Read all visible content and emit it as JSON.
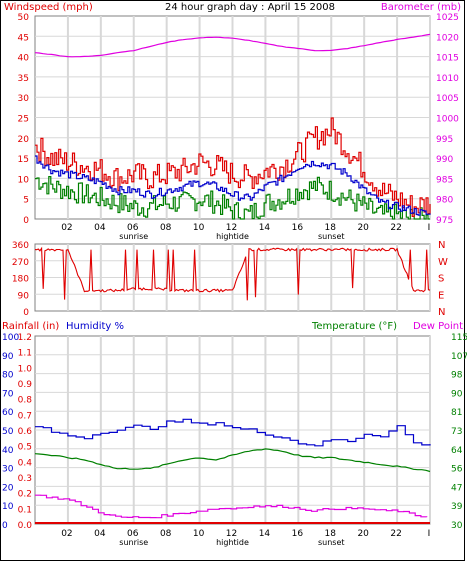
{
  "title": "24 hour graph day : April 15 2008",
  "colors": {
    "red": "#e00000",
    "blue": "#0000cc",
    "green": "#008000",
    "magenta": "#e000e0",
    "grid": "#d8d8d8",
    "axis": "#808080"
  },
  "x_ticks": [
    "02",
    "04",
    "06",
    "08",
    "10",
    "12",
    "14",
    "16",
    "18",
    "20",
    "22",
    "I"
  ],
  "events_top": [
    "sunrise",
    "hightide",
    "sunset"
  ],
  "events_bottom": [
    "sunrise",
    "hightide",
    "sunset"
  ],
  "chart_data": [
    {
      "type": "line",
      "name": "wind-barometer",
      "ylabel_left": "Windspeed (mph)",
      "ylabel_right": "Barometer (mb)",
      "ylim_left": [
        0,
        50
      ],
      "ylim_right": [
        975,
        1025
      ],
      "yticks_left": [
        "50",
        "45",
        "40",
        "35",
        "30",
        "25",
        "20",
        "15",
        "10",
        "5",
        "0"
      ],
      "yticks_right": [
        "1025",
        "1020",
        "1015",
        "1010",
        "1005",
        "1000",
        "995",
        "990",
        "985",
        "980",
        "975"
      ],
      "x": [
        0,
        1,
        2,
        3,
        4,
        5,
        6,
        7,
        8,
        9,
        10,
        11,
        12,
        13,
        14,
        15,
        16,
        17,
        18,
        19,
        20,
        21,
        22,
        23,
        24
      ],
      "series": [
        {
          "key": "gust",
          "values": [
            18,
            15,
            14,
            13,
            12,
            10,
            11,
            10,
            11,
            12,
            14,
            13,
            11,
            10,
            12,
            13,
            16,
            20,
            22,
            17,
            12,
            7,
            5,
            3,
            4
          ]
        },
        {
          "key": "avg",
          "values": [
            15,
            12,
            11,
            10,
            9,
            7,
            7,
            6,
            7,
            8,
            9,
            8,
            6,
            5,
            8,
            10,
            13,
            14,
            13,
            11,
            7,
            4,
            3,
            2,
            1
          ]
        },
        {
          "key": "min",
          "values": [
            10,
            8,
            7,
            6,
            5,
            4,
            3,
            3,
            4,
            4,
            5,
            4,
            2,
            1,
            4,
            5,
            7,
            8,
            7,
            5,
            3,
            1,
            1,
            0,
            0
          ]
        },
        {
          "key": "barometer",
          "values": [
            1016,
            1015.5,
            1015,
            1015,
            1015.3,
            1016,
            1016.5,
            1017.5,
            1018.5,
            1019.2,
            1019.6,
            1019.8,
            1019.5,
            1019,
            1018.2,
            1017.5,
            1017,
            1016.5,
            1016.5,
            1017,
            1017.7,
            1018.5,
            1019.2,
            1019.8,
            1020.5
          ]
        }
      ]
    },
    {
      "type": "line",
      "name": "wind-direction",
      "yticks_left": [
        "360",
        "270",
        "180",
        "90",
        "0"
      ],
      "yticks_right": [
        "N",
        "W",
        "S",
        "E",
        "N"
      ],
      "ylim": [
        0,
        360
      ],
      "x": [
        0,
        1,
        2,
        3,
        4,
        5,
        6,
        7,
        8,
        9,
        10,
        11,
        12,
        13,
        14,
        15,
        16,
        17,
        18,
        19,
        20,
        21,
        22,
        23,
        24
      ],
      "series": [
        {
          "key": "direction",
          "values": [
            330,
            330,
            330,
            110,
            110,
            110,
            120,
            120,
            115,
            110,
            110,
            110,
            110,
            330,
            330,
            330,
            330,
            330,
            330,
            330,
            330,
            330,
            330,
            110,
            110
          ]
        }
      ]
    },
    {
      "type": "line",
      "name": "rain-humidity-temperature",
      "ylabel_rain": "Rainfall (in)",
      "ylabel_humidity": "Humidity %",
      "ylabel_right": "Temperature (°F)",
      "ylabel_right2": "Dew Point",
      "yticks_rain": [
        "1.2",
        "1.1",
        "1.0",
        "0.9",
        "0.8",
        "0.7",
        "0.6",
        "0.5",
        "0.4",
        "0.3",
        "0.2",
        "0.1",
        "0.0"
      ],
      "yticks_humidity": [
        "100",
        "90",
        "80",
        "70",
        "60",
        "50",
        "40",
        "30",
        "20",
        "10",
        "0"
      ],
      "yticks_temp": [
        "115",
        "107",
        "98",
        "90",
        "81",
        "73",
        "64",
        "56",
        "47",
        "39",
        "30"
      ],
      "ylim_temp": [
        30,
        115
      ],
      "ylim_rain": [
        0,
        1.2
      ],
      "ylim_humidity": [
        0,
        100
      ],
      "x": [
        0,
        1,
        2,
        3,
        4,
        5,
        6,
        7,
        8,
        9,
        10,
        11,
        12,
        13,
        14,
        15,
        16,
        17,
        18,
        19,
        20,
        21,
        22,
        23,
        24
      ],
      "series": [
        {
          "key": "humidity",
          "values": [
            52,
            49,
            47,
            46,
            49,
            50,
            52,
            51,
            54,
            55,
            53,
            54,
            51,
            50,
            48,
            46,
            43,
            42,
            45,
            44,
            48,
            47,
            52,
            43,
            42
          ]
        },
        {
          "key": "temperature",
          "values": [
            62,
            61,
            60,
            59,
            57,
            55,
            55,
            55,
            57,
            59,
            60,
            59,
            61,
            63,
            64,
            63,
            61,
            60,
            60,
            59,
            58,
            57,
            56,
            55,
            54
          ]
        },
        {
          "key": "dewpoint",
          "values": [
            43,
            42,
            41,
            38,
            35,
            33,
            33,
            33,
            34,
            35,
            36,
            37,
            37,
            38,
            38,
            38,
            37,
            36,
            37,
            37,
            37,
            36,
            36,
            34,
            33
          ]
        },
        {
          "key": "rainfall",
          "values": [
            0,
            0,
            0,
            0,
            0,
            0,
            0,
            0,
            0,
            0,
            0,
            0,
            0,
            0,
            0,
            0,
            0,
            0,
            0,
            0,
            0,
            0,
            0,
            0,
            0
          ]
        }
      ]
    }
  ]
}
